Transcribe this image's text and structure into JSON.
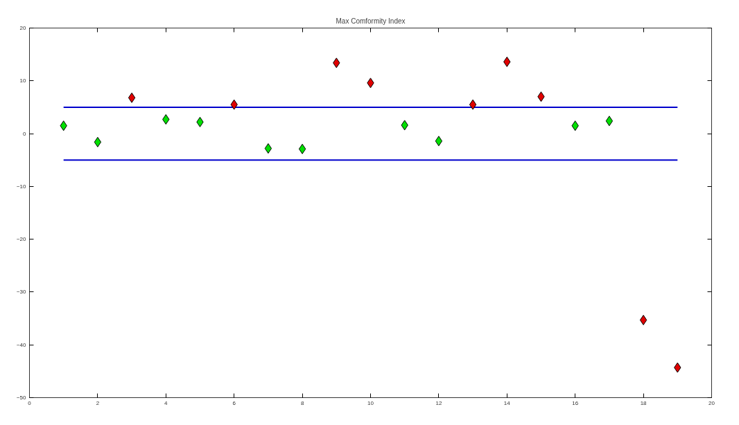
{
  "chart_data": {
    "type": "scatter",
    "title": "Max Comformity Index",
    "xlim": [
      0,
      20
    ],
    "xticks": [
      0,
      2,
      4,
      6,
      8,
      10,
      12,
      14,
      16,
      18,
      20
    ],
    "ylim": [
      -50,
      20
    ],
    "yticks": [
      -50,
      -40,
      -30,
      -20,
      -10,
      0,
      10,
      20
    ],
    "grid": false,
    "series": [
      {
        "type": "line",
        "color": "#0000cc",
        "x": [
          1,
          19
        ],
        "values": [
          5,
          5
        ],
        "marker": "none",
        "line_style": "solid"
      },
      {
        "type": "line",
        "color": "#0000cc",
        "x": [
          1,
          19
        ],
        "values": [
          -5,
          -5
        ],
        "marker": "none",
        "line_style": "solid"
      },
      {
        "marker": "diamond",
        "x": [
          1,
          2,
          3,
          4,
          5,
          6,
          7,
          8,
          9,
          10,
          11,
          12,
          13,
          14,
          15,
          16,
          17,
          18,
          19
        ],
        "values": [
          1.5,
          -1.6,
          6.8,
          2.7,
          2.2,
          5.5,
          -2.8,
          -2.9,
          13.4,
          9.6,
          1.6,
          -1.4,
          5.5,
          13.6,
          7.0,
          1.5,
          2.4,
          -35.3,
          -44.3
        ],
        "colors": [
          "#00e000",
          "#00e000",
          "#e00000",
          "#00e000",
          "#00e000",
          "#e00000",
          "#00e000",
          "#00e000",
          "#e00000",
          "#e00000",
          "#00e000",
          "#00e000",
          "#e00000",
          "#e00000",
          "#e00000",
          "#00e000",
          "#00e000",
          "#e00000",
          "#e00000"
        ]
      }
    ]
  }
}
